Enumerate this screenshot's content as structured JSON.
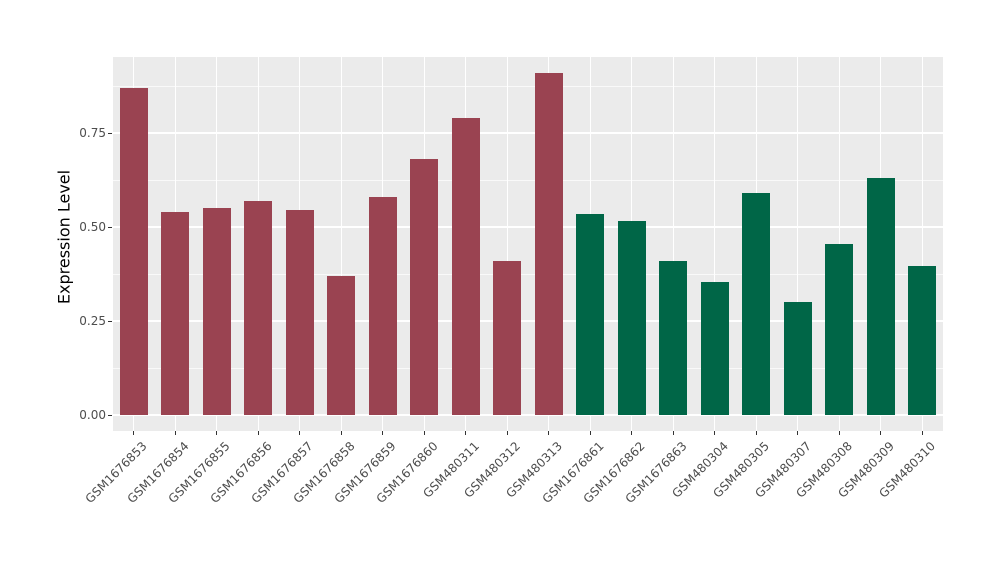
{
  "chart_data": {
    "type": "bar",
    "title": "",
    "xlabel": "",
    "ylabel": "Expression Level",
    "categories": [
      "GSM1676853",
      "GSM1676854",
      "GSM1676855",
      "GSM1676856",
      "GSM1676857",
      "GSM1676858",
      "GSM1676859",
      "GSM1676860",
      "GSM480311",
      "GSM480312",
      "GSM480313",
      "GSM1676861",
      "GSM1676862",
      "GSM1676863",
      "GSM480304",
      "GSM480305",
      "GSM480307",
      "GSM480308",
      "GSM480309",
      "GSM480310"
    ],
    "values": [
      0.87,
      0.54,
      0.55,
      0.57,
      0.545,
      0.37,
      0.58,
      0.68,
      0.79,
      0.41,
      0.91,
      0.535,
      0.515,
      0.41,
      0.355,
      0.59,
      0.3,
      0.455,
      0.63,
      0.395
    ],
    "bar_groups": [
      "group_red",
      "group_red",
      "group_red",
      "group_red",
      "group_red",
      "group_red",
      "group_red",
      "group_red",
      "group_red",
      "group_red",
      "group_red",
      "group_green",
      "group_green",
      "group_green",
      "group_green",
      "group_green",
      "group_green",
      "group_green",
      "group_green",
      "group_green"
    ],
    "group_colors": {
      "group_red": "#9A4351",
      "group_green": "#006647"
    },
    "ytick_values": [
      0,
      0.25,
      0.5,
      0.75
    ],
    "ytick_labels": [
      "0.00",
      "0.25",
      "0.50",
      "0.75"
    ],
    "y_minor_ticks": [
      0.125,
      0.375,
      0.625,
      0.875
    ],
    "ylim": [
      -0.043,
      0.952
    ],
    "x_tick_rotation_deg": -45,
    "grid": true,
    "legend": "none",
    "panel_bg": "#EBEBEB",
    "grid_color": "#FFFFFF",
    "tick_label_color": "#4D4D4D"
  }
}
